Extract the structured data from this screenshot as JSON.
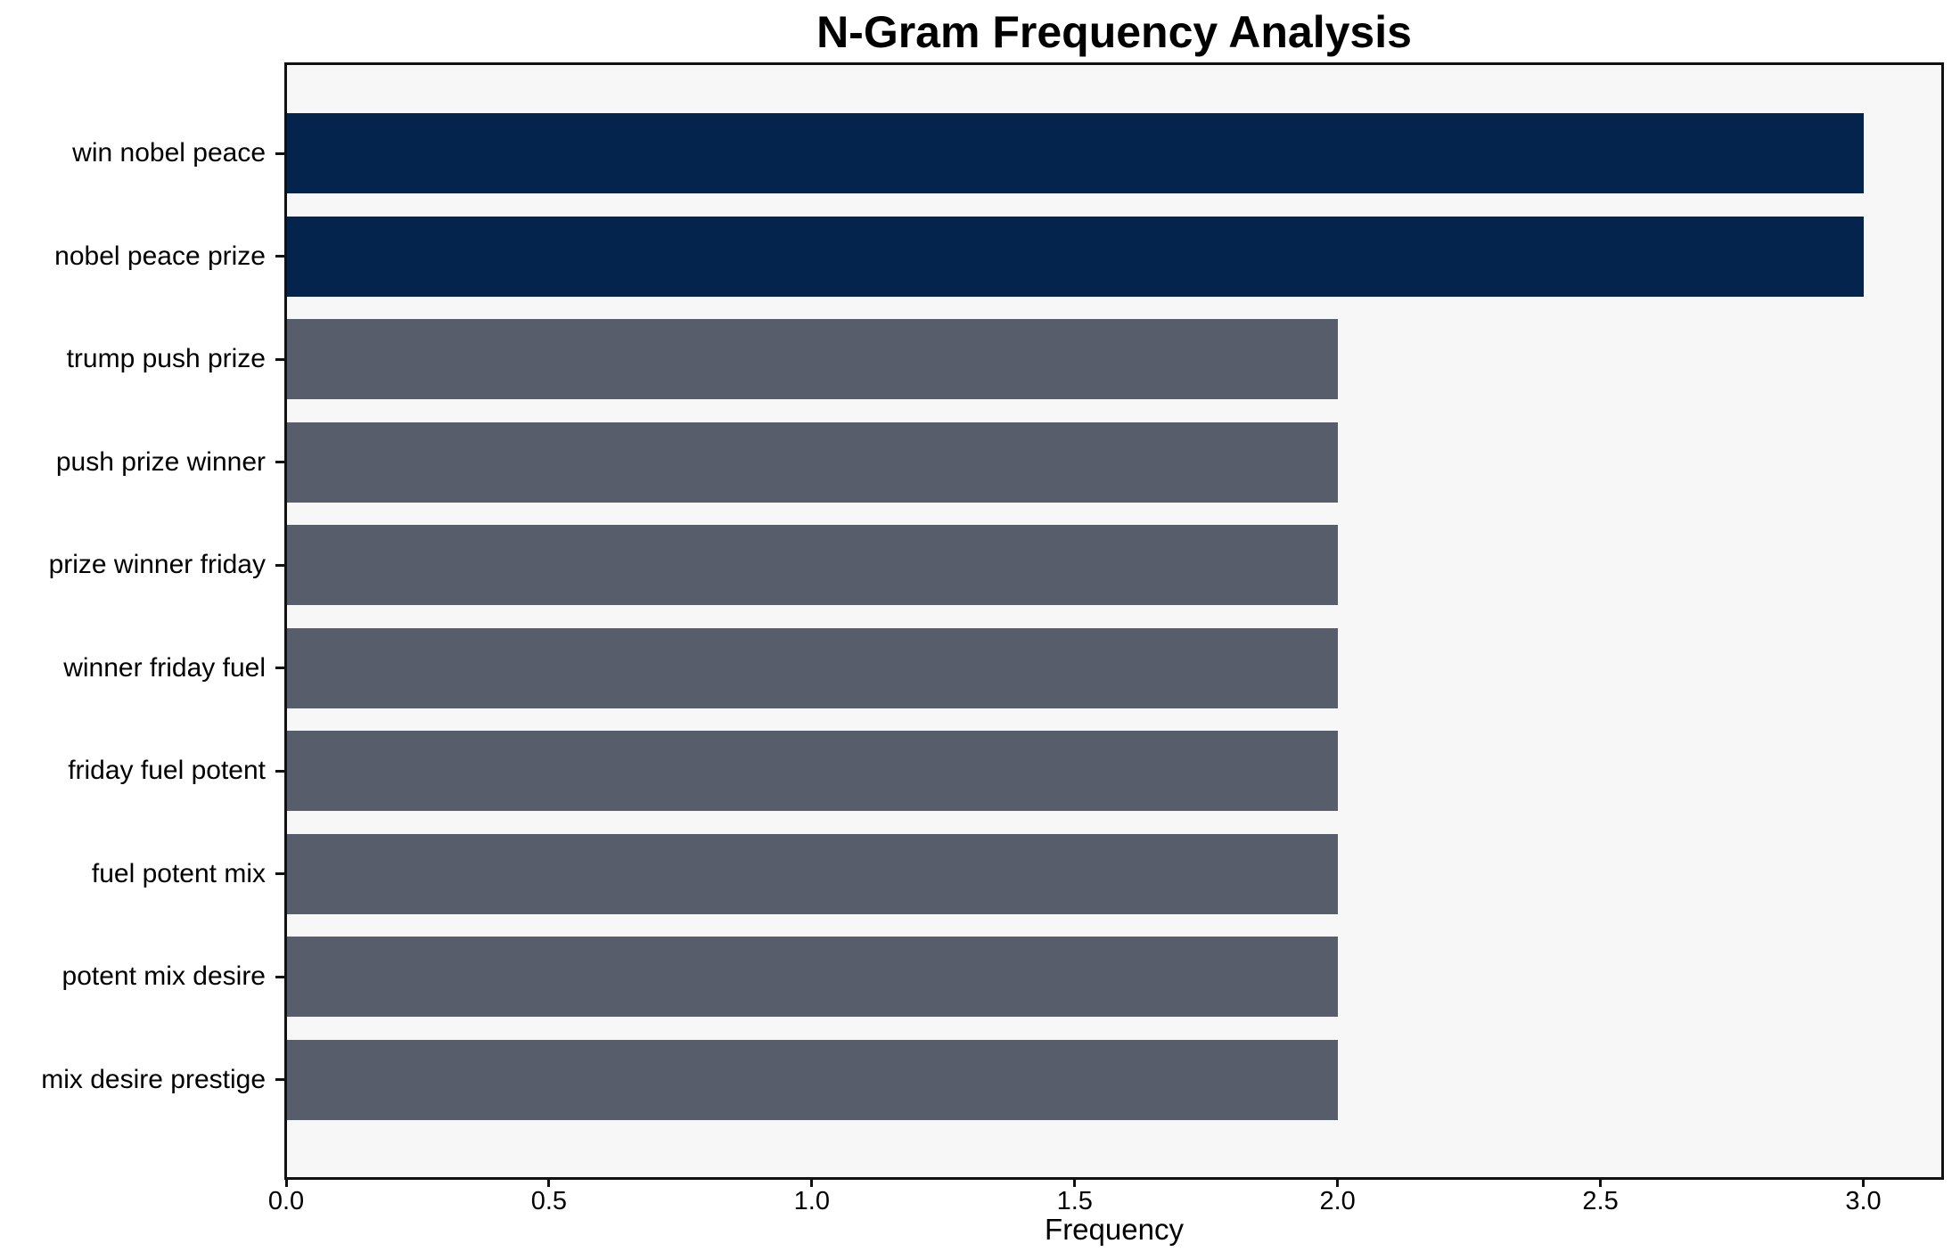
{
  "chart_data": {
    "type": "bar",
    "orientation": "horizontal",
    "title": "N-Gram Frequency Analysis",
    "xlabel": "Frequency",
    "ylabel": "",
    "categories": [
      "win nobel peace",
      "nobel peace prize",
      "trump push prize",
      "push prize winner",
      "prize winner friday",
      "winner friday fuel",
      "friday fuel potent",
      "fuel potent mix",
      "potent mix desire",
      "mix desire prestige"
    ],
    "values": [
      3,
      3,
      2,
      2,
      2,
      2,
      2,
      2,
      2,
      2
    ],
    "bar_colors": [
      "#04244e",
      "#04244e",
      "#575d6b",
      "#575d6b",
      "#575d6b",
      "#575d6b",
      "#575d6b",
      "#575d6b",
      "#575d6b",
      "#575d6b"
    ],
    "xlim": [
      0,
      3.15
    ],
    "xticks": [
      0.0,
      0.5,
      1.0,
      1.5,
      2.0,
      2.5,
      3.0
    ],
    "xtick_labels": [
      "0.0",
      "0.5",
      "1.0",
      "1.5",
      "2.0",
      "2.5",
      "3.0"
    ],
    "grid": false,
    "legend": null,
    "colors": {
      "highlight_bar": "#04244e",
      "normal_bar": "#575d6b",
      "plot_background": "#f7f7f7",
      "figure_background": "#ffffff",
      "spine": "#111111",
      "text": "#000000"
    }
  }
}
